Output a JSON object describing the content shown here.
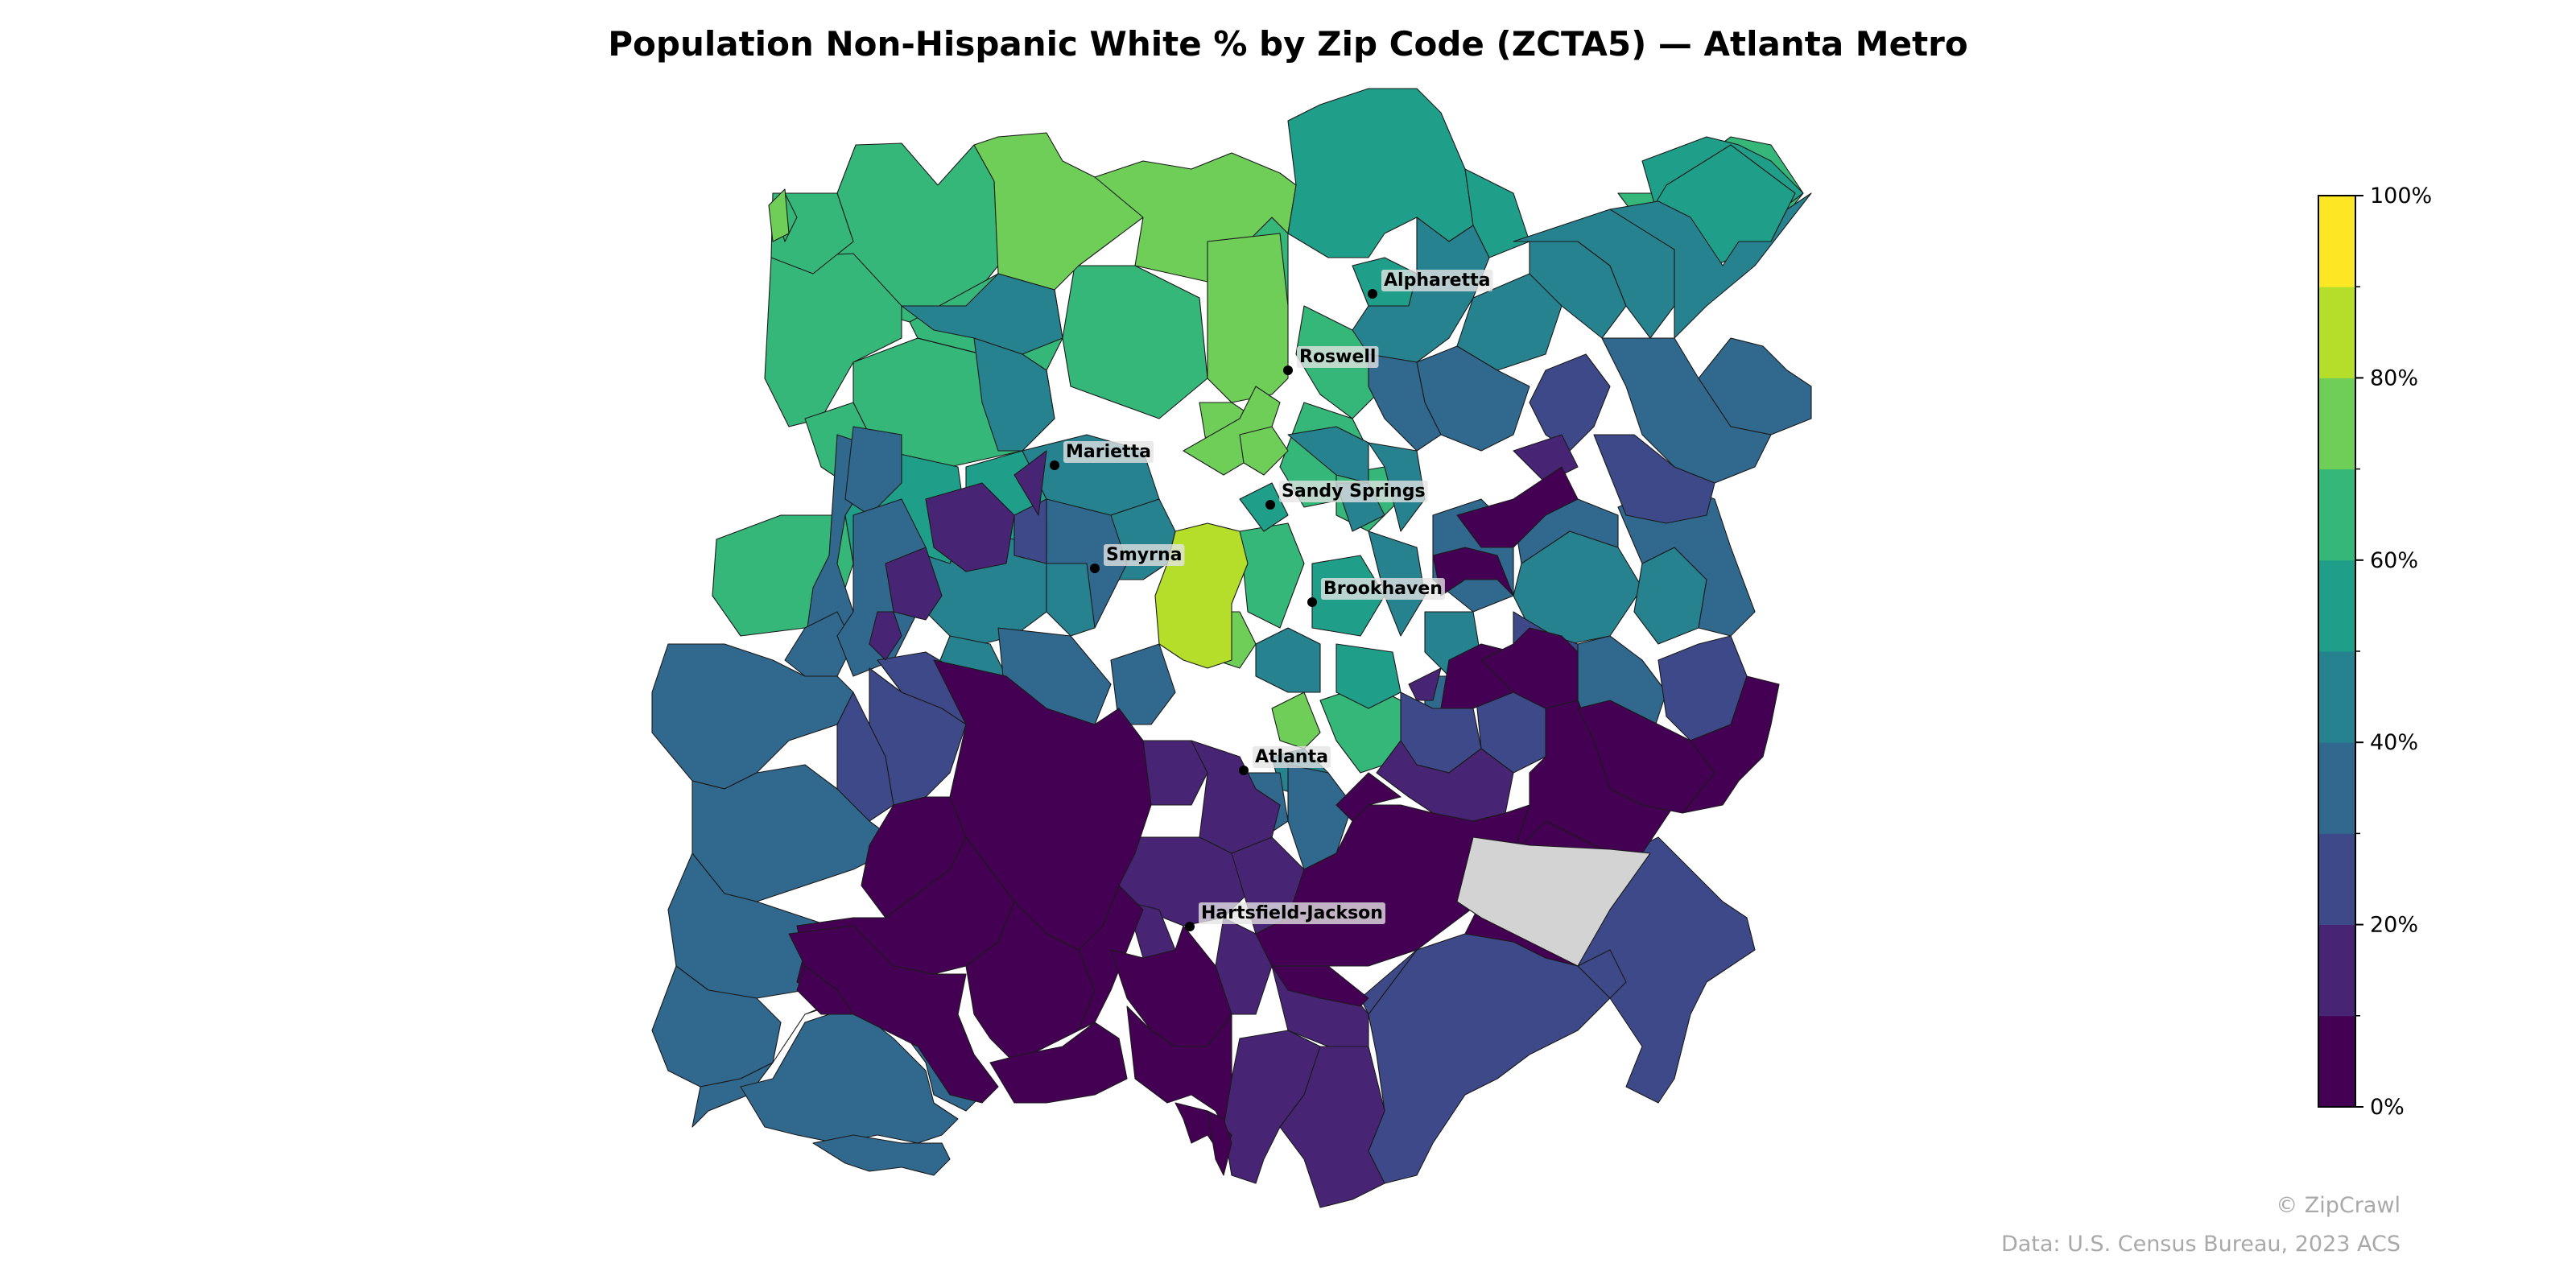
{
  "title": "Population Non-Hispanic White % by Zip Code (ZCTA5) — Atlanta Metro",
  "credit": "© ZipCrawl",
  "source": "Data: U.S. Census Bureau, 2023 ACS",
  "legend": {
    "tick_labels": [
      "0%",
      "20%",
      "40%",
      "60%",
      "80%",
      "100%"
    ],
    "bins": [
      {
        "range": "0-10%",
        "color": "#440154"
      },
      {
        "range": "10-20%",
        "color": "#482475"
      },
      {
        "range": "20-30%",
        "color": "#3e4989"
      },
      {
        "range": "30-40%",
        "color": "#31688e"
      },
      {
        "range": "40-50%",
        "color": "#26828e"
      },
      {
        "range": "50-60%",
        "color": "#1f9e89"
      },
      {
        "range": "60-70%",
        "color": "#35b779"
      },
      {
        "range": "70-80%",
        "color": "#6ece58"
      },
      {
        "range": "80-90%",
        "color": "#b5de2b"
      },
      {
        "range": "90-100%",
        "color": "#fde725"
      }
    ],
    "no_data_color": "#d3d3d3"
  },
  "cities": [
    {
      "name": "Alpharetta"
    },
    {
      "name": "Roswell"
    },
    {
      "name": "Marietta"
    },
    {
      "name": "Sandy Springs"
    },
    {
      "name": "Smyrna"
    },
    {
      "name": "Brookhaven"
    },
    {
      "name": "Atlanta"
    },
    {
      "name": "Hartsfield-Jackson"
    }
  ]
}
